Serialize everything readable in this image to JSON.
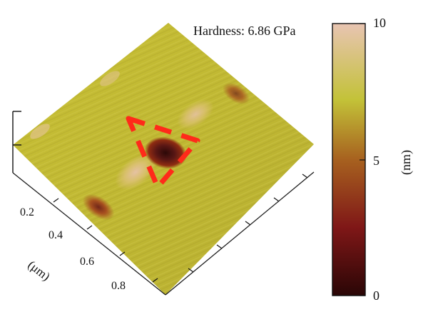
{
  "annotation": {
    "hardness_text": "Hardness: 6.86 GPa"
  },
  "axis": {
    "unit_label": "(μm)",
    "ticks": [
      "0.2",
      "0.4",
      "0.6",
      "0.8"
    ]
  },
  "colorbar": {
    "unit_label": "(nm)",
    "ticks": [
      "10",
      "5",
      "0"
    ],
    "min": 0,
    "max": 10,
    "colors": [
      "#2a0606",
      "#7f1717",
      "#a7611f",
      "#c3c238",
      "#e8c4b2"
    ]
  },
  "indent_marker": {
    "shape": "triangle",
    "style": "dashed",
    "color": "#ff2a1a"
  },
  "surface": {
    "base_color": "#c4bd32"
  }
}
